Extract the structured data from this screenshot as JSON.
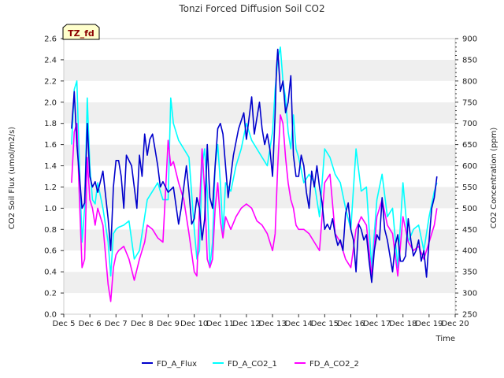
{
  "chart_data": {
    "type": "line",
    "title": "Tonzi Forced Diffusion Soil CO2",
    "tag_label": "TZ_fd",
    "xlabel": "Time",
    "ylabel_left": "CO2 Soil Flux (umol/m2/s)",
    "ylabel_right": "CO2 Concentration (ppm)",
    "xlim": [
      5,
      20
    ],
    "ylim_left": [
      0,
      2.6
    ],
    "ylim_right": [
      250,
      900
    ],
    "x_ticks": [
      5,
      6,
      7,
      8,
      9,
      10,
      11,
      12,
      13,
      14,
      15,
      16,
      17,
      18,
      19,
      20
    ],
    "x_tick_labels": [
      "Dec 5",
      "Dec 6",
      "Dec 7",
      "Dec 8",
      "Dec 9",
      "Dec 10",
      "Dec 11",
      "Dec 12",
      "Dec 13",
      "Dec 14",
      "Dec 15",
      "Dec 16",
      "Dec 17",
      "Dec 18",
      "Dec 19",
      "Dec 20"
    ],
    "y_left_ticks": [
      0.0,
      0.2,
      0.4,
      0.6,
      0.8,
      1.0,
      1.2,
      1.4,
      1.6,
      1.8,
      2.0,
      2.2,
      2.4,
      2.6
    ],
    "y_left_tick_labels": [
      "0.0",
      "0.2",
      "0.4",
      "0.6",
      "0.8",
      "1.0",
      "1.2",
      "1.4",
      "1.6",
      "1.8",
      "2.0",
      "2.2",
      "2.4",
      "2.6"
    ],
    "y_right_ticks": [
      250,
      300,
      350,
      400,
      450,
      500,
      550,
      600,
      650,
      700,
      750,
      800,
      850,
      900
    ],
    "y_right_tick_labels": [
      "250",
      "300",
      "350",
      "400",
      "450",
      "500",
      "550",
      "600",
      "650",
      "700",
      "750",
      "800",
      "850",
      "900"
    ],
    "grid": "horizontal alternating bands",
    "legend_position": "bottom",
    "series": [
      {
        "name": "FD_A_Flux",
        "axis": "left",
        "color": "#0000cc",
        "x": [
          5.3,
          5.4,
          5.5,
          5.6,
          5.7,
          5.8,
          5.9,
          6.0,
          6.1,
          6.2,
          6.3,
          6.5,
          6.7,
          6.8,
          6.9,
          7.0,
          7.1,
          7.2,
          7.3,
          7.4,
          7.6,
          7.8,
          7.9,
          8.0,
          8.1,
          8.2,
          8.3,
          8.4,
          8.5,
          8.6,
          8.7,
          8.8,
          9.0,
          9.2,
          9.4,
          9.5,
          9.7,
          9.8,
          9.9,
          10.0,
          10.1,
          10.2,
          10.3,
          10.4,
          10.5,
          10.6,
          10.7,
          10.8,
          10.9,
          11.0,
          11.1,
          11.3,
          11.5,
          11.7,
          11.9,
          12.0,
          12.2,
          12.3,
          12.4,
          12.5,
          12.6,
          12.7,
          12.8,
          12.9,
          13.0,
          13.1,
          13.15,
          13.2,
          13.25,
          13.3,
          13.4,
          13.5,
          13.6,
          13.7,
          13.8,
          13.9,
          14.0,
          14.1,
          14.2,
          14.3,
          14.4,
          14.5,
          14.6,
          14.7,
          14.8,
          14.9,
          15.0,
          15.1,
          15.2,
          15.3,
          15.4,
          15.5,
          15.6,
          15.7,
          15.8,
          15.9,
          16.0,
          16.1,
          16.2,
          16.3,
          16.4,
          16.5,
          16.6,
          16.7,
          16.8,
          16.9,
          17.0,
          17.1,
          17.2,
          17.3,
          17.4,
          17.5,
          17.6,
          17.7,
          17.8,
          17.9,
          18.0,
          18.1,
          18.2,
          18.3,
          18.4,
          18.5,
          18.6,
          18.7,
          18.8,
          18.9,
          19.0,
          19.1,
          19.2,
          19.3
        ],
        "values": [
          1.75,
          2.1,
          1.6,
          1.3,
          1.0,
          1.05,
          1.8,
          1.3,
          1.2,
          1.25,
          1.15,
          1.35,
          0.9,
          0.6,
          1.2,
          1.45,
          1.45,
          1.3,
          1.0,
          1.5,
          1.4,
          1.0,
          1.5,
          1.3,
          1.7,
          1.5,
          1.65,
          1.7,
          1.55,
          1.4,
          1.2,
          1.25,
          1.15,
          1.2,
          0.85,
          1.0,
          1.4,
          1.15,
          0.85,
          0.9,
          1.1,
          1.0,
          0.7,
          0.9,
          1.6,
          1.1,
          1.0,
          1.4,
          1.75,
          1.8,
          1.7,
          1.1,
          1.5,
          1.75,
          1.9,
          1.65,
          2.05,
          1.7,
          1.85,
          2.0,
          1.75,
          1.6,
          1.7,
          1.55,
          1.3,
          1.9,
          2.3,
          2.5,
          2.3,
          2.1,
          2.2,
          1.9,
          2.0,
          2.25,
          1.5,
          1.3,
          1.3,
          1.5,
          1.4,
          1.15,
          1.0,
          1.35,
          1.2,
          1.4,
          1.2,
          1.05,
          0.8,
          0.85,
          0.8,
          0.9,
          0.75,
          0.65,
          0.7,
          0.6,
          0.95,
          1.05,
          0.8,
          0.7,
          0.4,
          0.85,
          0.8,
          0.7,
          0.75,
          0.5,
          0.3,
          0.6,
          0.75,
          0.7,
          1.1,
          0.8,
          0.7,
          0.55,
          0.4,
          0.65,
          0.75,
          0.5,
          0.5,
          0.55,
          0.9,
          0.7,
          0.55,
          0.6,
          0.7,
          0.5,
          0.6,
          0.35,
          0.7,
          1.0,
          1.1,
          1.3
        ],
        "y_unit": "umol/m2/s"
      },
      {
        "name": "FD_A_CO2_1",
        "axis": "right",
        "color": "#00ffff",
        "x": [
          5.3,
          5.4,
          5.5,
          5.6,
          5.7,
          5.8,
          5.9,
          6.0,
          6.1,
          6.2,
          6.3,
          6.5,
          6.7,
          6.8,
          6.9,
          7.0,
          7.1,
          7.3,
          7.5,
          7.7,
          7.9,
          8.0,
          8.1,
          8.2,
          8.4,
          8.6,
          8.8,
          9.0,
          9.1,
          9.2,
          9.4,
          9.6,
          9.8,
          10.0,
          10.1,
          10.2,
          10.3,
          10.4,
          10.5,
          10.6,
          10.7,
          10.8,
          10.9,
          11.0,
          11.1,
          11.2,
          11.4,
          11.6,
          11.8,
          12.0,
          12.2,
          12.4,
          12.6,
          12.8,
          13.0,
          13.1,
          13.2,
          13.3,
          13.4,
          13.5,
          13.6,
          13.7,
          13.8,
          13.9,
          14.0,
          14.2,
          14.4,
          14.6,
          14.8,
          15.0,
          15.2,
          15.4,
          15.6,
          15.8,
          16.0,
          16.2,
          16.4,
          16.6,
          16.8,
          17.0,
          17.2,
          17.4,
          17.6,
          17.8,
          18.0,
          18.2,
          18.4,
          18.6,
          18.8,
          19.0,
          19.2,
          19.3
        ],
        "values": [
          650,
          780,
          800,
          600,
          420,
          500,
          760,
          600,
          520,
          510,
          560,
          500,
          420,
          340,
          440,
          450,
          455,
          460,
          470,
          380,
          400,
          440,
          480,
          520,
          540,
          560,
          520,
          520,
          760,
          700,
          660,
          640,
          620,
          450,
          380,
          400,
          600,
          640,
          540,
          360,
          420,
          600,
          650,
          560,
          440,
          560,
          540,
          600,
          640,
          700,
          660,
          640,
          620,
          600,
          680,
          780,
          850,
          880,
          800,
          760,
          680,
          640,
          720,
          640,
          620,
          560,
          580,
          560,
          480,
          640,
          620,
          580,
          560,
          500,
          450,
          640,
          540,
          550,
          360,
          520,
          580,
          480,
          500,
          360,
          560,
          420,
          450,
          460,
          400,
          480,
          540,
          560
        ],
        "y_unit": "ppm"
      },
      {
        "name": "FD_A_CO2_2",
        "axis": "right",
        "color": "#ff00ff",
        "x": [
          5.3,
          5.4,
          5.5,
          5.6,
          5.7,
          5.8,
          5.9,
          6.0,
          6.1,
          6.2,
          6.3,
          6.5,
          6.7,
          6.8,
          6.9,
          7.0,
          7.1,
          7.3,
          7.5,
          7.7,
          7.9,
          8.0,
          8.1,
          8.2,
          8.4,
          8.6,
          8.8,
          9.0,
          9.1,
          9.2,
          9.4,
          9.6,
          9.8,
          10.0,
          10.1,
          10.2,
          10.3,
          10.4,
          10.5,
          10.6,
          10.7,
          10.8,
          10.9,
          11.0,
          11.1,
          11.2,
          11.4,
          11.6,
          11.8,
          12.0,
          12.2,
          12.4,
          12.6,
          12.8,
          13.0,
          13.1,
          13.2,
          13.3,
          13.4,
          13.5,
          13.6,
          13.7,
          13.8,
          13.9,
          14.0,
          14.2,
          14.4,
          14.6,
          14.8,
          15.0,
          15.2,
          15.4,
          15.6,
          15.8,
          16.0,
          16.2,
          16.4,
          16.6,
          16.8,
          17.0,
          17.2,
          17.4,
          17.6,
          17.8,
          18.0,
          18.2,
          18.4,
          18.6,
          18.8,
          19.0,
          19.2,
          19.3
        ],
        "values": [
          560,
          680,
          700,
          520,
          360,
          380,
          620,
          520,
          500,
          460,
          500,
          460,
          320,
          280,
          360,
          390,
          400,
          410,
          380,
          330,
          380,
          400,
          420,
          460,
          450,
          430,
          420,
          660,
          600,
          610,
          560,
          520,
          440,
          350,
          340,
          500,
          640,
          540,
          380,
          360,
          380,
          500,
          560,
          470,
          430,
          480,
          450,
          480,
          500,
          510,
          500,
          470,
          460,
          440,
          400,
          440,
          600,
          720,
          700,
          620,
          560,
          520,
          500,
          460,
          450,
          450,
          440,
          420,
          400,
          560,
          580,
          440,
          420,
          380,
          360,
          450,
          480,
          460,
          340,
          480,
          520,
          460,
          440,
          340,
          480,
          420,
          400,
          410,
          380,
          420,
          460,
          500
        ],
        "y_unit": "ppm"
      }
    ]
  }
}
